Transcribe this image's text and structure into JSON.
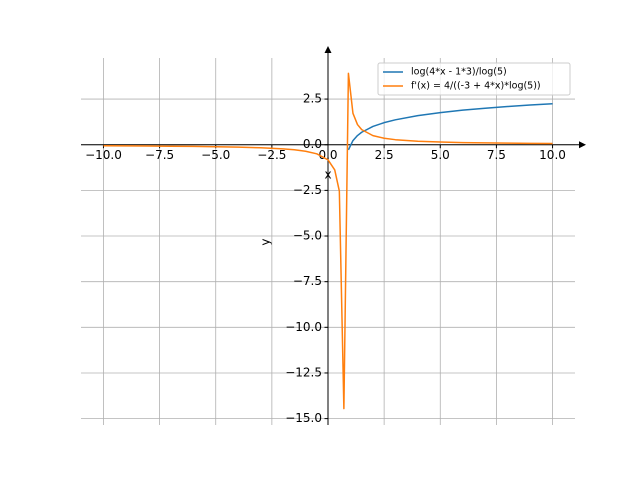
{
  "chart_data": {
    "type": "line",
    "xlabel": "x",
    "ylabel": "y",
    "x": [
      -10,
      -9,
      -8,
      -7,
      -6,
      -5,
      -4,
      -3,
      -2,
      -1.5,
      -1,
      -0.5,
      0,
      0.3,
      0.505,
      0.707,
      0.909,
      1.111,
      1.313,
      1.5,
      2,
      2.5,
      3,
      4,
      5,
      6,
      7,
      8,
      9,
      10
    ],
    "series": [
      {
        "name": "log(4*x - 1*3)/log(5)",
        "color": "#1f77b4",
        "values": [
          null,
          null,
          null,
          null,
          null,
          null,
          null,
          null,
          null,
          null,
          null,
          null,
          null,
          null,
          null,
          null,
          -0.281,
          0.228,
          0.504,
          0.683,
          1.0,
          1.209,
          1.365,
          1.594,
          1.76,
          1.892,
          2.0,
          2.092,
          2.173,
          2.244
        ]
      },
      {
        "name": "f'(x) = 4/((-3 + 4*x)*log(5))",
        "color": "#ff7f0e",
        "values": [
          -0.058,
          -0.064,
          -0.071,
          -0.08,
          -0.092,
          -0.108,
          -0.131,
          -0.166,
          -0.226,
          -0.276,
          -0.355,
          -0.497,
          -0.828,
          -1.381,
          -2.536,
          -14.45,
          3.908,
          1.721,
          1.104,
          0.828,
          0.497,
          0.355,
          0.276,
          0.191,
          0.146,
          0.118,
          0.099,
          0.086,
          0.075,
          0.067
        ]
      }
    ],
    "xlim": [
      -11,
      11
    ],
    "ylim": [
      -15.35,
      4.75
    ],
    "xticks": [
      {
        "value": -10,
        "label": "−10.0"
      },
      {
        "value": -7.5,
        "label": "−7.5"
      },
      {
        "value": -5,
        "label": "−5.0"
      },
      {
        "value": -2.5,
        "label": "−2.5"
      },
      {
        "value": 0,
        "label": "0.0"
      },
      2.5,
      {
        "value": 5,
        "label": "5.0"
      },
      7.5,
      {
        "value": 10,
        "label": "10.0"
      }
    ],
    "yticks": [
      {
        "value": -15,
        "label": "−15.0"
      },
      {
        "value": -12.5,
        "label": "−12.5"
      },
      {
        "value": -10,
        "label": "−10.0"
      },
      {
        "value": -7.5,
        "label": "−7.5"
      },
      {
        "value": -5,
        "label": "−5.0"
      },
      {
        "value": -2.5,
        "label": "−2.5"
      },
      {
        "value": 0,
        "label": "0.0"
      },
      2.5
    ],
    "grid": true,
    "legend": "upper right"
  }
}
